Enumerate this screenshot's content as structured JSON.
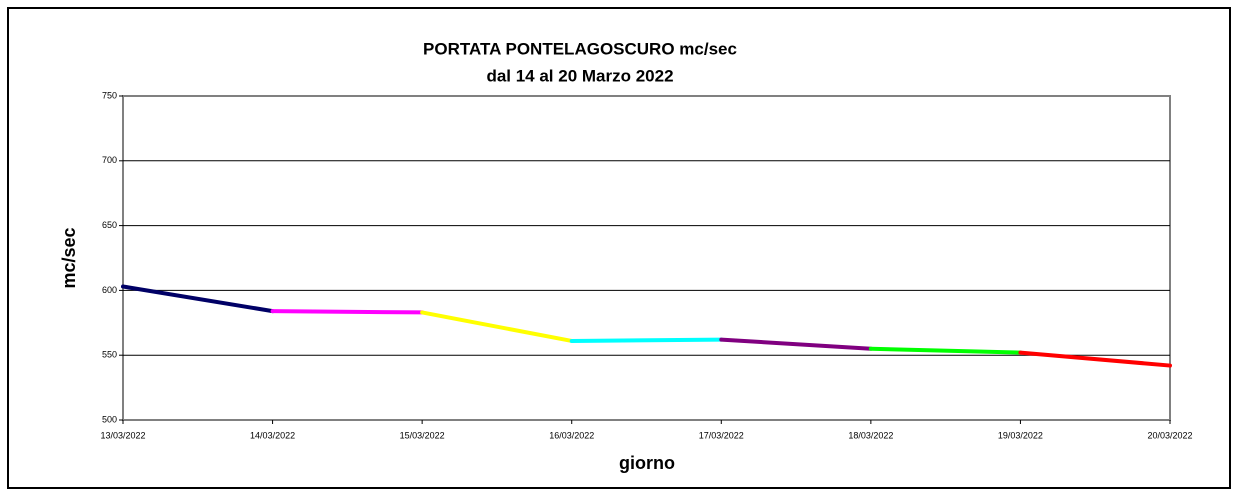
{
  "chart_data": {
    "type": "line",
    "title": "PORTATA PONTELAGOSCURO mc/sec",
    "subtitle": "dal 14 al 20 Marzo 2022",
    "x_label": "giorno",
    "y_label": "mc/sec",
    "categories": [
      "13/03/2022",
      "14/03/2022",
      "15/03/2022",
      "16/03/2022",
      "17/03/2022",
      "18/03/2022",
      "19/03/2022",
      "20/03/2022"
    ],
    "values": [
      603,
      584,
      583,
      561,
      562,
      555,
      552,
      542
    ],
    "segment_colors": [
      "#000066",
      "#ff00ff",
      "#ffff00",
      "#00ffff",
      "#800080",
      "#00ff00",
      "#ff0000"
    ],
    "ylim": [
      500,
      750
    ],
    "yticks": [
      500,
      550,
      600,
      650,
      700,
      750
    ],
    "grid": true
  }
}
